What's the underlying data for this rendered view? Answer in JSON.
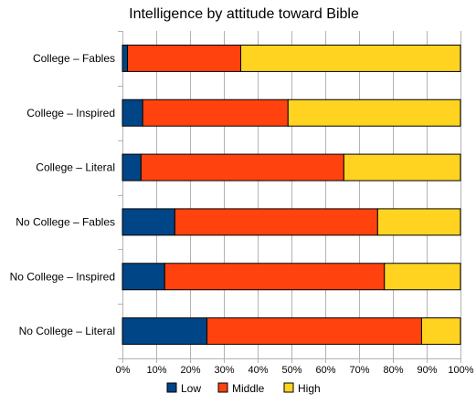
{
  "chart_data": {
    "type": "bar",
    "orientation": "horizontal",
    "stacked": true,
    "title": "Intelligence by attitude toward Bible",
    "xlabel": "",
    "ylabel": "",
    "xlim": [
      0,
      100
    ],
    "x_ticks": [
      "0%",
      "10%",
      "20%",
      "30%",
      "40%",
      "50%",
      "60%",
      "70%",
      "80%",
      "90%",
      "100%"
    ],
    "grid": true,
    "legend_position": "bottom",
    "categories": [
      "College – Fables",
      "College – Inspired",
      "College – Literal",
      "No College – Fables",
      "No College – Inspired",
      "No College – Literal"
    ],
    "series": [
      {
        "name": "Low",
        "color": "#004586",
        "values": [
          1.5,
          6,
          5.5,
          15.5,
          12.5,
          25
        ]
      },
      {
        "name": "Middle",
        "color": "#ff420e",
        "values": [
          33.5,
          43,
          60,
          60,
          65,
          63.5
        ]
      },
      {
        "name": "High",
        "color": "#ffd320",
        "values": [
          65,
          51,
          34.5,
          24.5,
          22.5,
          11.5
        ]
      }
    ]
  }
}
